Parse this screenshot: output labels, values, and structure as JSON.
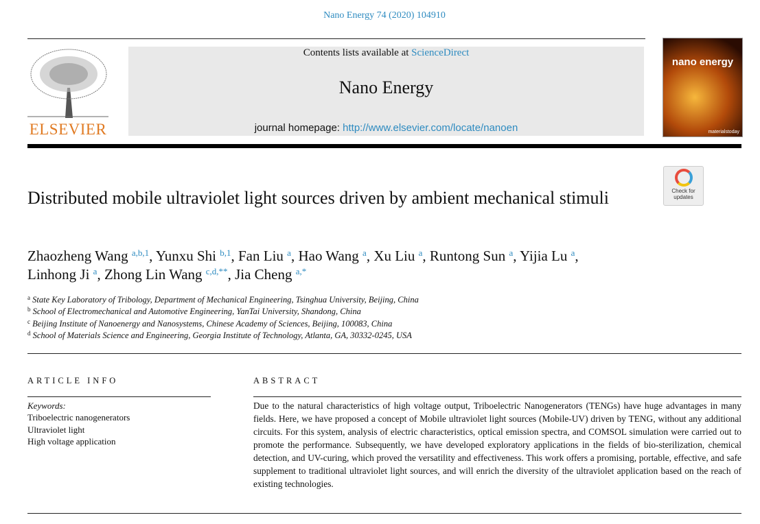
{
  "citation": "Nano Energy 74 (2020) 104910",
  "header": {
    "publisher": "ELSEVIER",
    "contents_prefix": "Contents lists available at ",
    "contents_link": "ScienceDirect",
    "journal": "Nano Energy",
    "homepage_prefix": "journal homepage: ",
    "homepage_link": "http://www.elsevier.com/locate/nanoen",
    "cover_title": "nano energy",
    "cover_footer": "materialstoday"
  },
  "check_updates": "Check for updates",
  "title": "Distributed mobile ultraviolet light sources driven by ambient mechanical stimuli",
  "authors": [
    {
      "name": "Zhaozheng Wang",
      "sup": "a,b,1"
    },
    {
      "name": "Yunxu Shi",
      "sup": "b,1"
    },
    {
      "name": "Fan Liu",
      "sup": "a"
    },
    {
      "name": "Hao Wang",
      "sup": "a"
    },
    {
      "name": "Xu Liu",
      "sup": "a"
    },
    {
      "name": "Runtong Sun",
      "sup": "a"
    },
    {
      "name": "Yijia Lu",
      "sup": "a"
    },
    {
      "name": "Linhong Ji",
      "sup": "a"
    },
    {
      "name": "Zhong Lin Wang",
      "sup": "c,d,**"
    },
    {
      "name": "Jia Cheng",
      "sup": "a,*"
    }
  ],
  "affiliations": [
    {
      "key": "a",
      "text": "State Key Laboratory of Tribology, Department of Mechanical Engineering, Tsinghua University, Beijing, China"
    },
    {
      "key": "b",
      "text": "School of Electromechanical and Automotive Engineering, YanTai University, Shandong, China"
    },
    {
      "key": "c",
      "text": "Beijing Institute of Nanoenergy and Nanosystems, Chinese Academy of Sciences, Beijing, 100083, China"
    },
    {
      "key": "d",
      "text": "School of Materials Science and Engineering, Georgia Institute of Technology, Atlanta, GA, 30332-0245, USA"
    }
  ],
  "article_info": {
    "heading": "ARTICLE INFO",
    "keywords_label": "Keywords:",
    "keywords": [
      "Triboelectric nanogenerators",
      "Ultraviolet light",
      "High voltage application"
    ]
  },
  "abstract": {
    "heading": "ABSTRACT",
    "text": "Due to the natural characteristics of high voltage output, Triboelectric Nanogenerators (TENGs) have huge advantages in many fields. Here, we have proposed a concept of Mobile ultraviolet light sources (Mobile-UV) driven by TENG, without any additional circuits. For this system, analysis of electric characteristics, optical emission spectra, and COMSOL simulation were carried out to promote the performance. Subsequently, we have developed exploratory applications in the fields of bio-sterilization, chemical detection, and UV-curing, which proved the versatility and effectiveness. This work offers a promising, portable, effective, and safe supplement to traditional ultraviolet light sources, and will enrich the diversity of the ultraviolet application based on the reach of existing technologies."
  },
  "colors": {
    "link": "#2e8bc0",
    "elsevier": "#e07a22",
    "header_box": "#e9e9e9"
  }
}
